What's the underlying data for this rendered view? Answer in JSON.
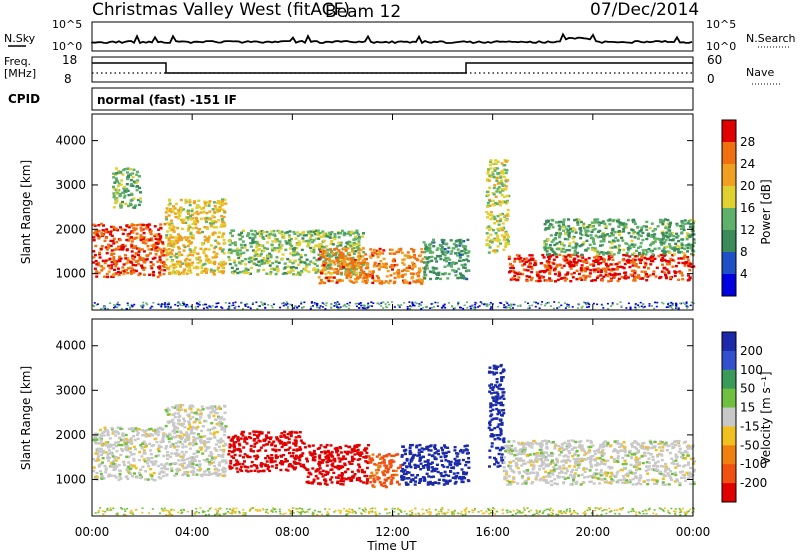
{
  "header": {
    "title": "Christmas Valley West (fitACF)",
    "beam": "Beam 12",
    "date": "07/Dec/2014",
    "cpid_label": "CPID",
    "cpid_text": "normal (fast) -151 IF"
  },
  "strips": {
    "nsky_label": "N.Sky",
    "nsearch_label": "N.Search",
    "freq_label": "Freq.",
    "freq_unit": "[MHz]",
    "nave_label": "Nave",
    "noise_ticks": [
      "10^5",
      "10^0"
    ],
    "freq_ticks": [
      "18",
      "8"
    ],
    "nave_ticks": [
      "60",
      "0"
    ]
  },
  "colors": {
    "power": [
      "#0000e0",
      "#2050c8",
      "#3a8a5a",
      "#5fb06a",
      "#e0d030",
      "#f0a020",
      "#f07010",
      "#e00000"
    ],
    "velocity": [
      "#1a2aa8",
      "#3050d0",
      "#3a9a5a",
      "#70c040",
      "#c8c8c8",
      "#f0c020",
      "#f08010",
      "#f05010",
      "#e00000"
    ],
    "ground": "#b8b8b8"
  },
  "chart_data": [
    {
      "type": "heatmap",
      "title": "Power",
      "xlabel": "Time UT",
      "ylabel": "Slant Range [km]",
      "x_ticks": [
        "00:00",
        "04:00",
        "08:00",
        "12:00",
        "16:00",
        "20:00",
        "00:00"
      ],
      "xlim_hours": [
        0,
        24
      ],
      "ylim_km": [
        180,
        4600
      ],
      "y_ticks": [
        1000,
        2000,
        3000,
        4000
      ],
      "colorbar": {
        "label": "Power [dB]",
        "ticks": [
          "4",
          "8",
          "12",
          "16",
          "20",
          "24",
          "28"
        ],
        "range": [
          0,
          30
        ]
      },
      "echo_regions": [
        {
          "t_start": 0.0,
          "t_end": 2.9,
          "r_low": 950,
          "r_high": 2150,
          "value": 26
        },
        {
          "t_start": 0.8,
          "t_end": 1.9,
          "r_low": 2500,
          "r_high": 3400,
          "value": 13
        },
        {
          "t_start": 2.9,
          "t_end": 5.3,
          "r_low": 1000,
          "r_high": 2700,
          "value": 18
        },
        {
          "t_start": 5.4,
          "t_end": 10.8,
          "r_low": 1000,
          "r_high": 2000,
          "value": 14
        },
        {
          "t_start": 9.0,
          "t_end": 13.2,
          "r_low": 800,
          "r_high": 1600,
          "value": 23
        },
        {
          "t_start": 13.2,
          "t_end": 15.0,
          "r_low": 900,
          "r_high": 1800,
          "value": 11
        },
        {
          "t_start": 15.7,
          "t_end": 16.6,
          "r_low": 1500,
          "r_high": 3600,
          "value": 16
        },
        {
          "t_start": 16.6,
          "t_end": 24.0,
          "r_low": 850,
          "r_high": 1450,
          "value": 27
        },
        {
          "t_start": 18.0,
          "t_end": 24.0,
          "r_low": 1450,
          "r_high": 2250,
          "value": 12
        }
      ]
    },
    {
      "type": "heatmap",
      "title": "Velocity",
      "xlabel": "Time UT",
      "ylabel": "Slant Range [km]",
      "x_ticks": [
        "00:00",
        "04:00",
        "08:00",
        "12:00",
        "16:00",
        "20:00",
        "00:00"
      ],
      "xlim_hours": [
        0,
        24
      ],
      "ylim_km": [
        180,
        4600
      ],
      "y_ticks": [
        1000,
        2000,
        3000,
        4000
      ],
      "colorbar": {
        "label": "Velocity [m s⁻¹]",
        "ticks": [
          "200",
          "100",
          "50",
          "15",
          "-15",
          "-50",
          "-100",
          "-200"
        ],
        "range": [
          -250,
          250
        ]
      },
      "echo_regions": [
        {
          "t_start": 0.0,
          "t_end": 2.9,
          "r_low": 1000,
          "r_high": 2200,
          "value": 0
        },
        {
          "t_start": 2.9,
          "t_end": 5.3,
          "r_low": 1100,
          "r_high": 2700,
          "value": 0
        },
        {
          "t_start": 5.4,
          "t_end": 8.5,
          "r_low": 1200,
          "r_high": 2100,
          "value": -210
        },
        {
          "t_start": 8.5,
          "t_end": 11.0,
          "r_low": 900,
          "r_high": 1800,
          "value": -180
        },
        {
          "t_start": 11.0,
          "t_end": 12.3,
          "r_low": 850,
          "r_high": 1600,
          "value": -90
        },
        {
          "t_start": 12.3,
          "t_end": 15.0,
          "r_low": 900,
          "r_high": 1800,
          "value": 210
        },
        {
          "t_start": 15.8,
          "t_end": 16.4,
          "r_low": 1300,
          "r_high": 3600,
          "value": 220
        },
        {
          "t_start": 16.4,
          "t_end": 24.0,
          "r_low": 900,
          "r_high": 1900,
          "value": 0
        }
      ]
    }
  ]
}
